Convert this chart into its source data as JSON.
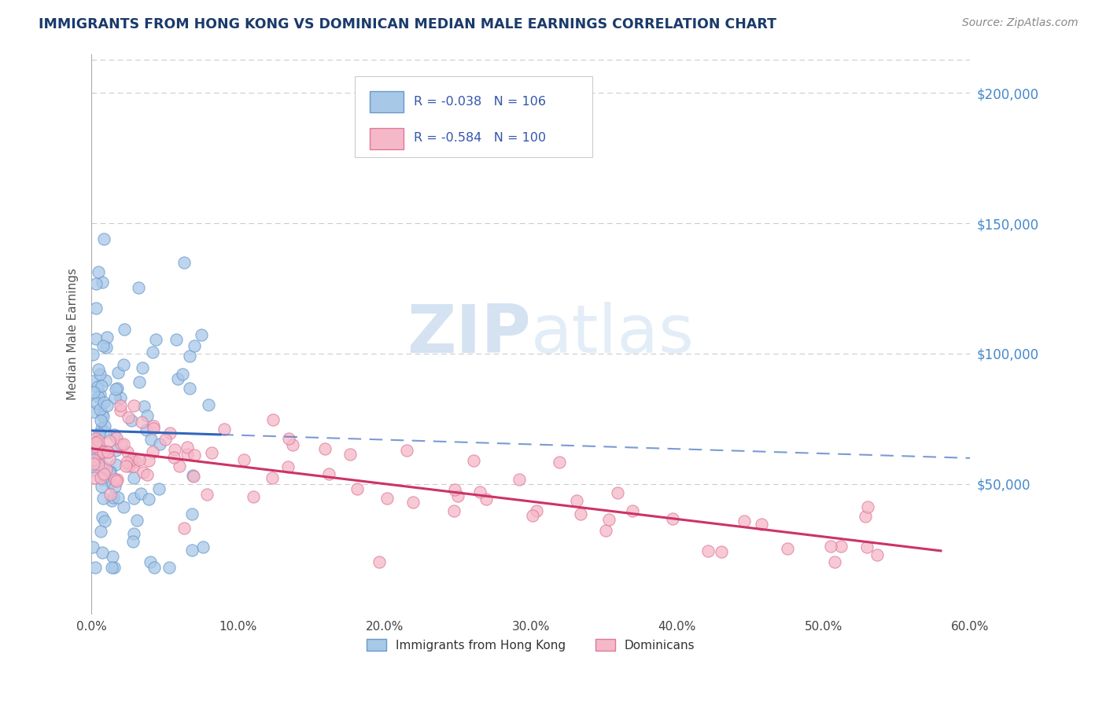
{
  "title": "IMMIGRANTS FROM HONG KONG VS DOMINICAN MEDIAN MALE EARNINGS CORRELATION CHART",
  "source": "Source: ZipAtlas.com",
  "ylabel": "Median Male Earnings",
  "x_min": 0.0,
  "x_max": 0.6,
  "y_min": 0,
  "y_max": 215000,
  "y_ticks": [
    50000,
    100000,
    150000,
    200000
  ],
  "y_tick_labels": [
    "$50,000",
    "$100,000",
    "$150,000",
    "$200,000"
  ],
  "x_ticks": [
    0.0,
    0.1,
    0.2,
    0.3,
    0.4,
    0.5,
    0.6
  ],
  "x_tick_labels": [
    "0.0%",
    "10.0%",
    "20.0%",
    "30.0%",
    "40.0%",
    "50.0%",
    "60.0%"
  ],
  "hk_color": "#a8c8e8",
  "hk_edge_color": "#6699cc",
  "dom_color": "#f5b8c8",
  "dom_edge_color": "#dd7799",
  "hk_line_color": "#3366bb",
  "dom_line_color": "#cc3366",
  "R_hk": -0.038,
  "N_hk": 106,
  "R_dom": -0.584,
  "N_dom": 100,
  "legend_label_hk": "Immigrants from Hong Kong",
  "legend_label_dom": "Dominicans",
  "title_color": "#1a3a6b",
  "axis_label_color": "#555555",
  "tick_color_right": "#4488cc",
  "background_color": "#ffffff",
  "grid_color": "#cccccc",
  "legend_text_color": "#3355aa"
}
